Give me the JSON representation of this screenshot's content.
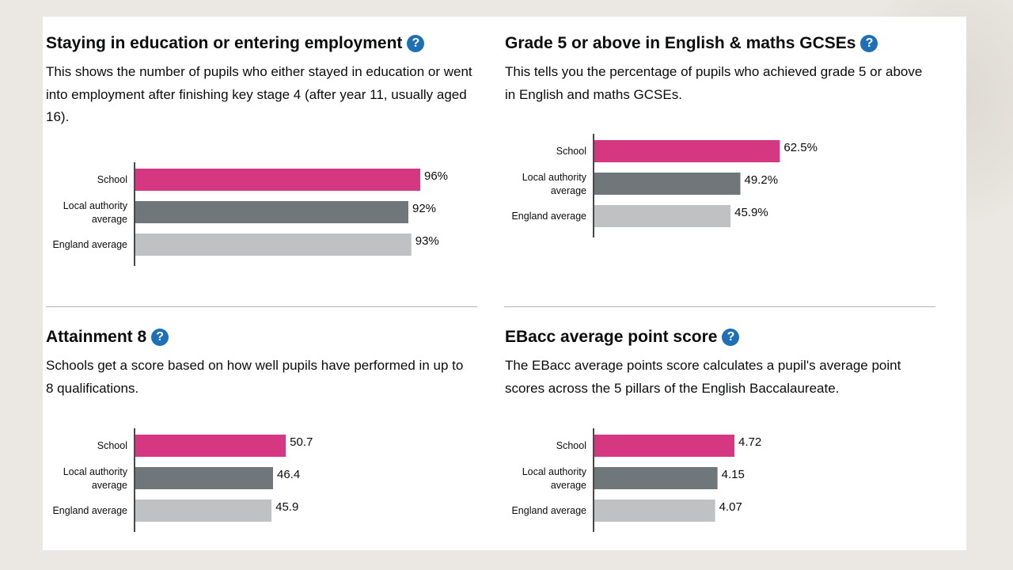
{
  "panels": [
    {
      "title": "Staying in education or entering employment",
      "description": "This shows the number of pupils who either stayed in education or went into employment after finishing key stage 4 (after year 11, usually aged 16)."
    },
    {
      "title": "Grade 5 or above in English & maths GCSEs",
      "description": "This tells you the percentage of pupils who achieved grade 5 or above in English and maths GCSEs."
    },
    {
      "title": "Attainment 8",
      "description": "Schools get a score based on how well pupils have performed in up to 8 qualifications."
    },
    {
      "title": "EBacc average point score",
      "description": "The EBacc average points score calculates a pupil's average point scores across the 5 pillars of the English Baccalaureate."
    }
  ],
  "help_symbol": "?",
  "colors": {
    "school": "#d53880",
    "local_authority": "#6f777b",
    "england": "#bfc1c3",
    "help_icon": "#1d70b8"
  },
  "chart_data": [
    {
      "type": "bar",
      "orientation": "horizontal",
      "categories": [
        "School",
        "Local authority average",
        "England average"
      ],
      "category_lines": [
        [
          "School"
        ],
        [
          "Local authority",
          "average"
        ],
        [
          "England average"
        ]
      ],
      "values": [
        96,
        92,
        93
      ],
      "labels": [
        "96%",
        "92%",
        "93%"
      ],
      "xlim": [
        0,
        100
      ]
    },
    {
      "type": "bar",
      "orientation": "horizontal",
      "categories": [
        "School",
        "Local authority average",
        "England average"
      ],
      "category_lines": [
        [
          "School"
        ],
        [
          "Local authority",
          "average"
        ],
        [
          "England average"
        ]
      ],
      "values": [
        62.5,
        49.2,
        45.9
      ],
      "labels": [
        "62.5%",
        "49.2%",
        "45.9%"
      ],
      "xlim": [
        0,
        100
      ]
    },
    {
      "type": "bar",
      "orientation": "horizontal",
      "categories": [
        "School",
        "Local authority average",
        "England average"
      ],
      "category_lines": [
        [
          "School"
        ],
        [
          "Local authority",
          "average"
        ],
        [
          "England average"
        ]
      ],
      "values": [
        50.7,
        46.4,
        45.9
      ],
      "labels": [
        "50.7",
        "46.4",
        "45.9"
      ],
      "xlim": [
        0,
        100
      ]
    },
    {
      "type": "bar",
      "orientation": "horizontal",
      "categories": [
        "School",
        "Local authority average",
        "England average"
      ],
      "category_lines": [
        [
          "School"
        ],
        [
          "Local authority",
          "average"
        ],
        [
          "England average"
        ]
      ],
      "values": [
        4.72,
        4.15,
        4.07
      ],
      "labels": [
        "4.72",
        "4.15",
        "4.07"
      ],
      "xlim": [
        0,
        10
      ]
    }
  ]
}
